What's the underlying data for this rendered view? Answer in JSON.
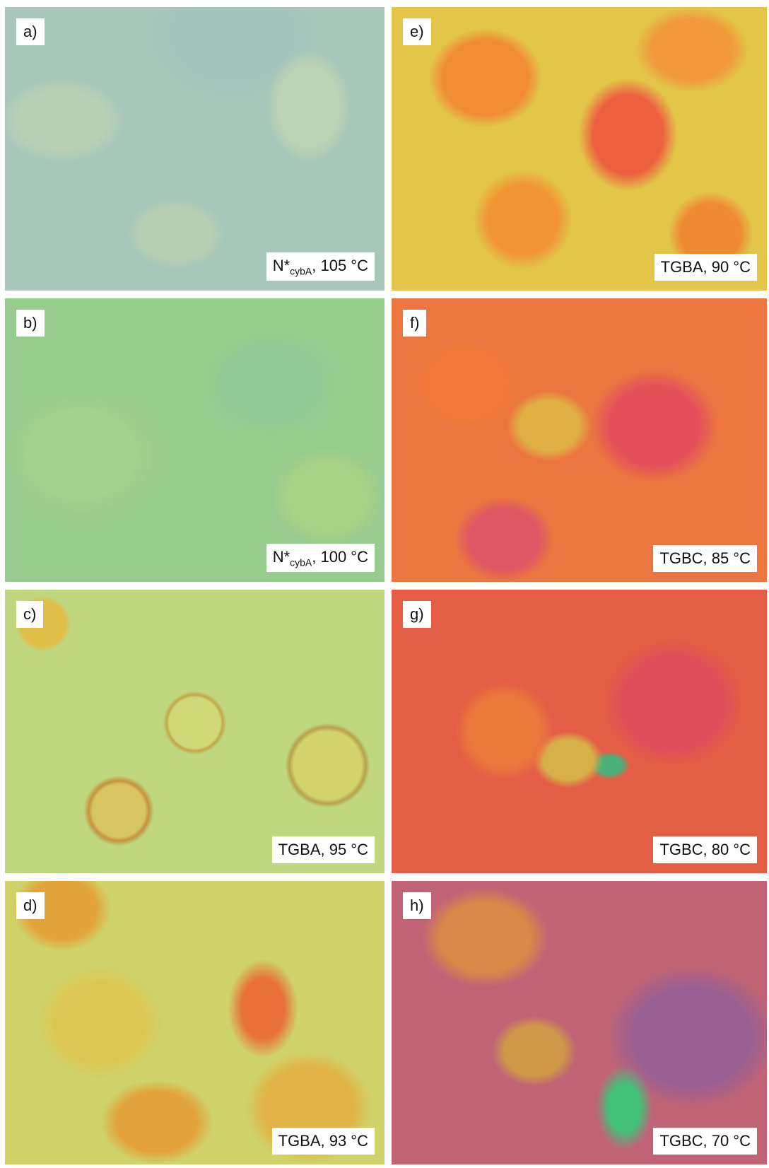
{
  "panels": [
    {
      "label": "a)",
      "caption": {
        "text": "N*",
        "sub": "cybA",
        "rest": ", 105 °C"
      }
    },
    {
      "label": "b)",
      "caption": {
        "text": "N*",
        "sub": "cybA",
        "rest": ", 100 °C"
      }
    },
    {
      "label": "c)",
      "caption": {
        "text": "TGBA, 95 °C"
      }
    },
    {
      "label": "d)",
      "caption": {
        "text": "TGBA, 93 °C"
      }
    },
    {
      "label": "e)",
      "caption": {
        "text": "TGBA, 90 °C"
      }
    },
    {
      "label": "f)",
      "caption": {
        "text": "TGBC, 85 °C"
      }
    },
    {
      "label": "g)",
      "caption": {
        "text": "TGBC, 80 °C"
      }
    },
    {
      "label": "h)",
      "caption": {
        "text": "TGBC, 70 °C"
      }
    }
  ]
}
